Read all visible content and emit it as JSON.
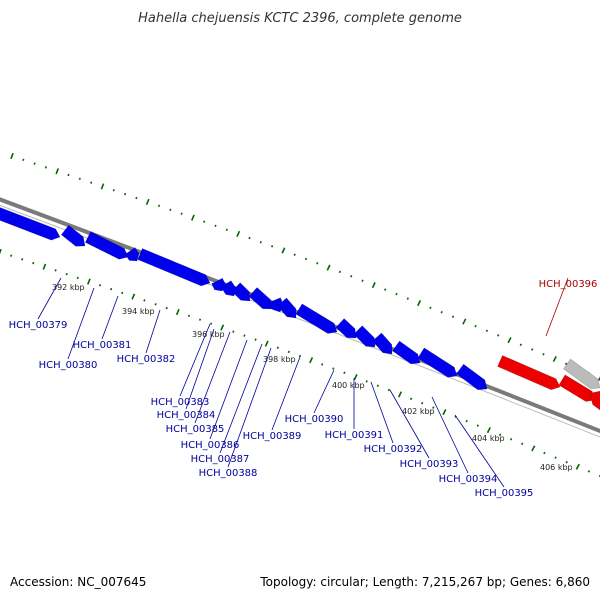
{
  "title": "Hahella chejuensis KCTC 2396, complete genome",
  "footer": {
    "accession": "Accession: NC_007645",
    "summary": "Topology: circular; Length: 7,215,267 bp; Genes: 6,860"
  },
  "colors": {
    "plus_strand": "#0000ee",
    "minus_strand": "#ee0000",
    "other_feature": "#bbbbbb",
    "backbone": "#888888",
    "tick": "#006600",
    "label_plus": "#000099",
    "label_minus": "#aa0000"
  },
  "scale_labels": [
    "392 kbp",
    "394 kbp",
    "396 kbp",
    "398 kbp",
    "400 kbp",
    "402 kbp",
    "404 kbp",
    "406 kbp"
  ],
  "genes": [
    {
      "name": "HCH_00379",
      "strand": "plus"
    },
    {
      "name": "HCH_00380",
      "strand": "plus"
    },
    {
      "name": "HCH_00381",
      "strand": "plus"
    },
    {
      "name": "HCH_00382",
      "strand": "plus"
    },
    {
      "name": "HCH_00383",
      "strand": "plus"
    },
    {
      "name": "HCH_00384",
      "strand": "plus"
    },
    {
      "name": "HCH_00385",
      "strand": "plus"
    },
    {
      "name": "HCH_00386",
      "strand": "plus"
    },
    {
      "name": "HCH_00387",
      "strand": "plus"
    },
    {
      "name": "HCH_00388",
      "strand": "plus"
    },
    {
      "name": "HCH_00389",
      "strand": "plus"
    },
    {
      "name": "HCH_00390",
      "strand": "plus"
    },
    {
      "name": "HCH_00391",
      "strand": "plus"
    },
    {
      "name": "HCH_00392",
      "strand": "plus"
    },
    {
      "name": "HCH_00393",
      "strand": "plus"
    },
    {
      "name": "HCH_00394",
      "strand": "plus"
    },
    {
      "name": "HCH_00395",
      "strand": "plus"
    },
    {
      "name": "HCH_00396",
      "strand": "minus"
    }
  ]
}
